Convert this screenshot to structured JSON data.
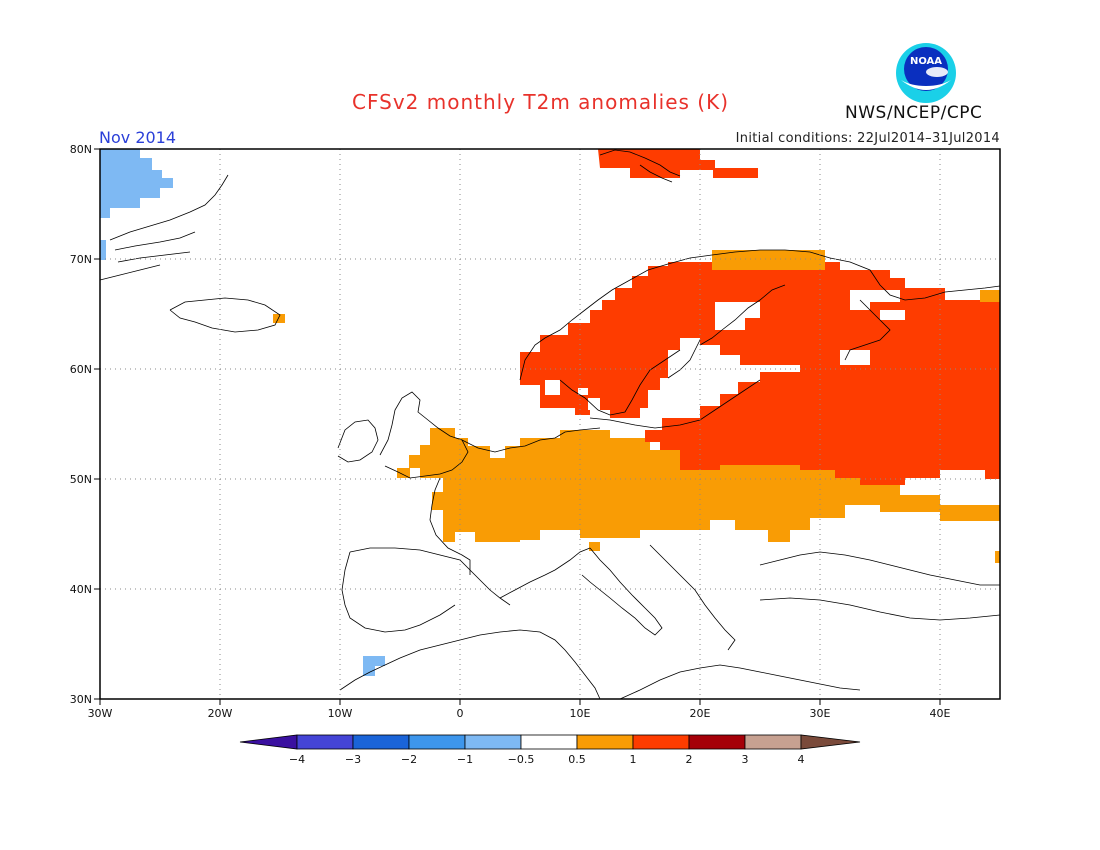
{
  "header": {
    "title": "CFSv2 monthly T2m anomalies (K)",
    "agency": "NWS/NCEP/CPC",
    "month": "Nov 2014",
    "initial_conditions": "Initial conditions: 22Jul2014–31Jul2014"
  },
  "logo": {
    "icon": "noaa-logo-icon",
    "text": "NOAA"
  },
  "map": {
    "lat_labels": [
      "80N",
      "70N",
      "60N",
      "50N",
      "40N",
      "30N"
    ],
    "lon_labels": [
      "30W",
      "20W",
      "10W",
      "0",
      "10E",
      "20E",
      "30E",
      "40E"
    ],
    "grid": true,
    "colors": {
      "cold1": "#7eb9f3",
      "warm1": "#f99c05",
      "warm2": "#fe3c00"
    }
  },
  "colorbar": {
    "ticks": [
      "−4",
      "−3",
      "−2",
      "−1",
      "−0.5",
      "0.5",
      "1",
      "2",
      "3",
      "4"
    ],
    "colors": [
      "#3a10a0",
      "#4444d6",
      "#1a64d8",
      "#3d96ec",
      "#7eb9f3",
      "#ffffff",
      "#f99c05",
      "#fe3c00",
      "#a50008",
      "#c7a191",
      "#7a4a3a"
    ]
  }
}
